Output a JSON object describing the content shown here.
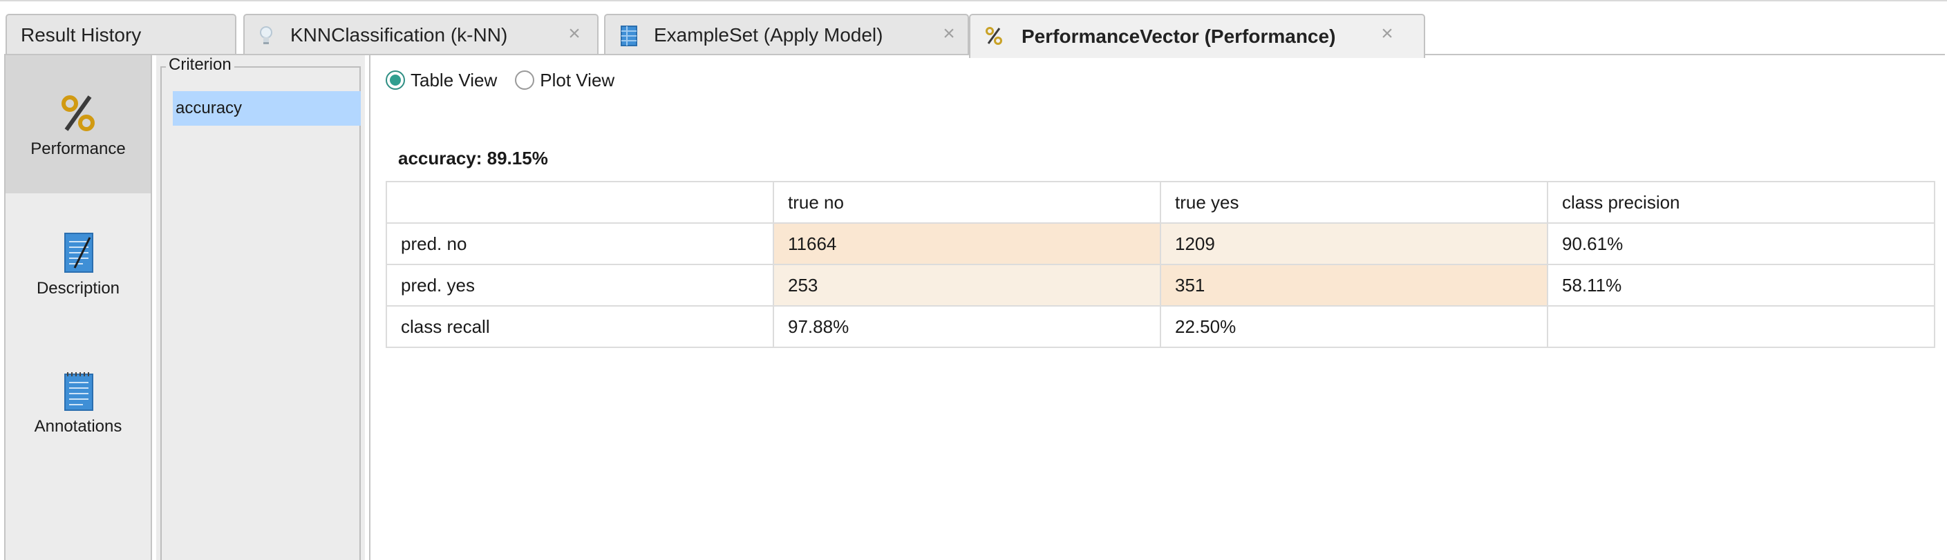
{
  "tabs": [
    {
      "label": "Result History",
      "icon": "none",
      "closable": false
    },
    {
      "label": "KNNClassification (k-NN)",
      "icon": "lightbulb-icon",
      "closable": true
    },
    {
      "label": "ExampleSet (Apply Model)",
      "icon": "table-icon",
      "closable": true
    },
    {
      "label": "PerformanceVector (Performance)",
      "icon": "percent-icon",
      "closable": true,
      "active": true
    }
  ],
  "nav": {
    "items": [
      {
        "label": "Performance",
        "icon": "percent-icon",
        "selected": true
      },
      {
        "label": "Description",
        "icon": "document-icon",
        "selected": false
      },
      {
        "label": "Annotations",
        "icon": "notepad-icon",
        "selected": false
      }
    ]
  },
  "criterion": {
    "title": "Criterion",
    "items": [
      "accuracy"
    ],
    "selected": "accuracy"
  },
  "view": {
    "table_view": "Table View",
    "plot_view": "Plot View",
    "selected": "Table View"
  },
  "performance": {
    "title": "accuracy: 89.15%",
    "header": [
      "",
      "true no",
      "true yes",
      "class precision"
    ],
    "rows": [
      [
        "pred. no",
        "11664",
        "1209",
        "90.61%"
      ],
      [
        "pred. yes",
        "253",
        "351",
        "58.11%"
      ],
      [
        "class recall",
        "97.88%",
        "22.50%",
        ""
      ]
    ]
  },
  "colors": {
    "selection_blue": "#b3d7ff",
    "radio_accent": "#2f9e8f",
    "cell_strong": "#fae7d2",
    "cell_light": "#f9efe2"
  }
}
